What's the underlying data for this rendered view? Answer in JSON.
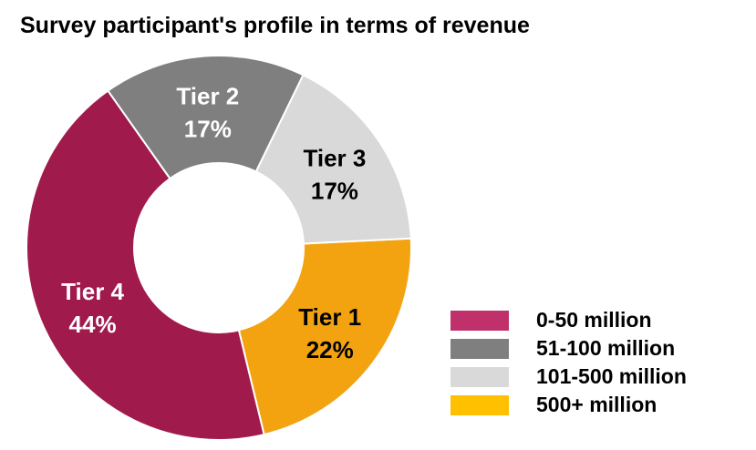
{
  "chart_data": {
    "type": "pie",
    "title": "Survey participant's profile in terms of revenue",
    "slices": [
      {
        "label": "Tier 1",
        "value": 22,
        "display": "22%",
        "color": "#f2a30f",
        "text_color": "#000000"
      },
      {
        "label": "Tier 4",
        "value": 44,
        "display": "44%",
        "color": "#a01a4c",
        "text_color": "#ffffff"
      },
      {
        "label": "Tier 2",
        "value": 17,
        "display": "17%",
        "color": "#7f7f7f",
        "text_color": "#ffffff"
      },
      {
        "label": "Tier 3",
        "value": 17,
        "display": "17%",
        "color": "#d9d9d9",
        "text_color": "#000000"
      }
    ],
    "legend": {
      "placement": "bottom-right",
      "entries": [
        {
          "label": "0-50 million",
          "color": "#c0306a"
        },
        {
          "label": "51-100 million",
          "color": "#7f7f7f"
        },
        {
          "label": "101-500 million",
          "color": "#d9d9d9"
        },
        {
          "label": "500+ million",
          "color": "#ffc000"
        }
      ]
    }
  }
}
